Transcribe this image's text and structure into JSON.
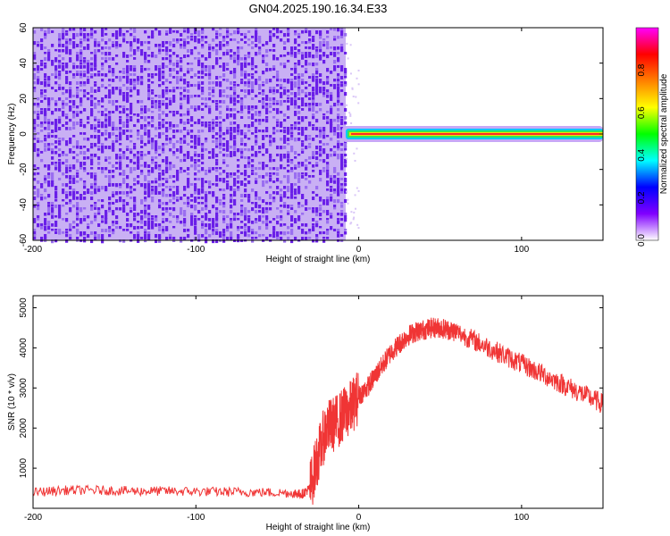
{
  "title": "GN04.2025.190.16.34.E33",
  "colors": {
    "noise": "#6a1fe8",
    "noise_light": "#c9b0f4",
    "snr_line": "#f03535",
    "axis": "#000000",
    "grid": "#c8c8c8"
  },
  "chart_data": [
    {
      "type": "heatmap",
      "xlabel": "Height of straight line (km)",
      "ylabel": "Frequency (Hz)",
      "xlim": [
        -200,
        150
      ],
      "ylim": [
        -60,
        60
      ],
      "xticks": [
        -200,
        -100,
        0,
        100
      ],
      "yticks": [
        -60,
        -40,
        -20,
        0,
        20,
        40,
        60
      ],
      "noise_region_x": [
        -200,
        -8
      ],
      "signal_band_x": [
        -8,
        150
      ],
      "signal_band_y": [
        -2,
        2
      ],
      "colorbar": {
        "label": "Normalized spectral amplitude",
        "range": [
          0,
          1
        ],
        "ticks": [
          "0.0",
          "0.2",
          "0.4",
          "0.6",
          "0.8"
        ],
        "stops": [
          "#ffffff",
          "#8000ff",
          "#0000ff",
          "#00ffff",
          "#00ff00",
          "#ffff00",
          "#ff8000",
          "#ff0000",
          "#ff00ff"
        ]
      }
    },
    {
      "type": "line",
      "xlabel": "Height of straight line (km)",
      "ylabel": "SNR (10 * v/v)",
      "xlim": [
        -200,
        150
      ],
      "ylim": [
        0,
        5300
      ],
      "xticks": [
        -200,
        -100,
        0,
        100
      ],
      "yticks": [
        1000,
        2000,
        3000,
        4000,
        5000
      ],
      "series": [
        {
          "x": [
            -200,
            -180,
            -160,
            -140,
            -120,
            -100,
            -80,
            -60,
            -40,
            -35,
            -30,
            -25,
            -20,
            -15,
            -10,
            -5,
            0,
            5,
            10,
            15,
            20,
            25,
            30,
            35,
            40,
            45,
            50,
            55,
            60,
            70,
            80,
            90,
            100,
            110,
            120,
            130,
            140,
            150
          ],
          "y": [
            400,
            450,
            450,
            430,
            430,
            420,
            410,
            400,
            380,
            350,
            500,
            1300,
            2000,
            2100,
            2300,
            2500,
            2800,
            3000,
            3300,
            3600,
            3900,
            4100,
            4300,
            4400,
            4450,
            4500,
            4500,
            4450,
            4400,
            4200,
            4000,
            3800,
            3600,
            3400,
            3200,
            3000,
            2800,
            2600
          ]
        }
      ]
    }
  ]
}
